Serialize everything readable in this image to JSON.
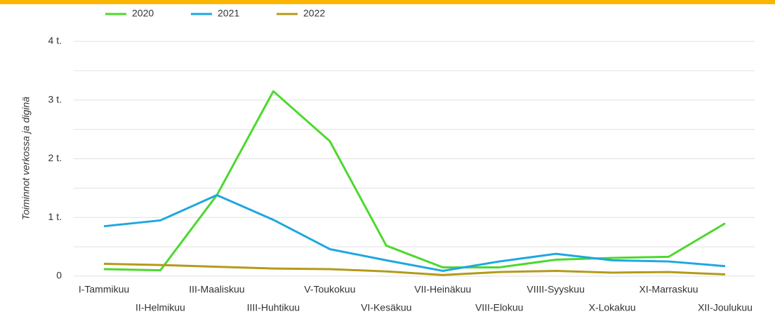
{
  "chart_data": {
    "type": "line",
    "y_label": "Toiminnot verkossa ja diginä",
    "categories": [
      "I-Tammikuu",
      "II-Helmikuu",
      "III-Maaliskuu",
      "IIII-Huhtikuu",
      "V-Toukokuu",
      "VI-Kesäkuu",
      "VII-Heinäkuu",
      "VIII-Elokuu",
      "VIIII-Syyskuu",
      "X-Lokakuu",
      "XI-Marraskuu",
      "XII-Joulukuu"
    ],
    "series": [
      {
        "name": "2020",
        "color": "#4cd92c",
        "values": [
          120,
          100,
          1380,
          3150,
          2300,
          520,
          150,
          150,
          280,
          310,
          330,
          900
        ]
      },
      {
        "name": "2021",
        "color": "#1ea7e0",
        "values": [
          850,
          950,
          1380,
          960,
          460,
          270,
          90,
          250,
          380,
          270,
          250,
          170
        ]
      },
      {
        "name": "2022",
        "color": "#b59a1a",
        "values": [
          210,
          190,
          160,
          130,
          120,
          80,
          20,
          70,
          90,
          60,
          70,
          30
        ]
      }
    ],
    "ylim": [
      0,
      4000
    ],
    "yticks": [
      0,
      {
        "value": 1000,
        "label": "1 t."
      },
      {
        "value": 2000,
        "label": "2 t."
      },
      {
        "value": 3000,
        "label": "3 t."
      },
      {
        "value": 4000,
        "label": "4 t."
      }
    ],
    "y_minor_ticks": [
      500,
      1500,
      2500,
      3500
    ],
    "grid": true,
    "legend": "top"
  }
}
